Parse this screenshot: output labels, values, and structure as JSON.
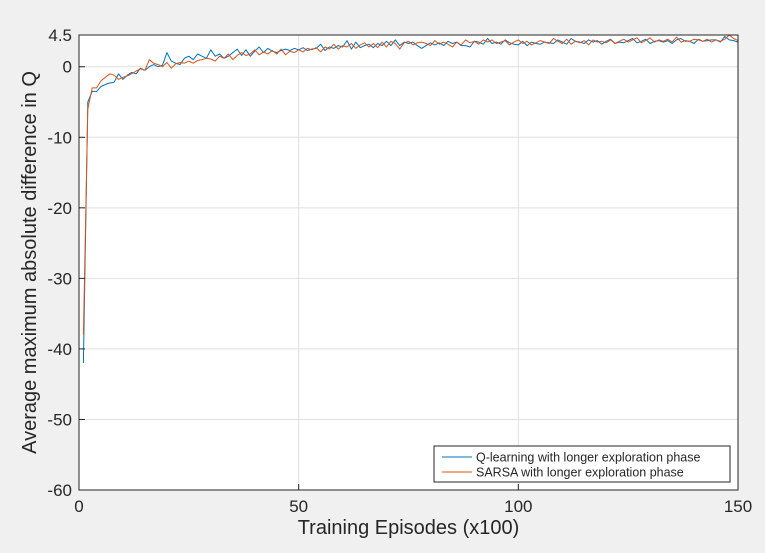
{
  "chart_data": {
    "type": "line",
    "title": "",
    "xlabel": "Training Episodes (x100)",
    "ylabel": "Average maximum absolute difference in Q",
    "xlim": [
      0,
      150
    ],
    "ylim": [
      -60,
      4.5
    ],
    "xticks": [
      0,
      50,
      100,
      150
    ],
    "yticks": [
      -60,
      -50,
      -40,
      -30,
      -20,
      -10,
      0,
      4.5
    ],
    "xtick_labels": [
      "0",
      "50",
      "100",
      "150"
    ],
    "ytick_labels": [
      "-60",
      "-50",
      "-40",
      "-30",
      "-20",
      "-10",
      "0",
      "4.5"
    ],
    "grid": true,
    "legend_position": "bottom-right",
    "series": [
      {
        "name": "Q-learning with longer exploration phase",
        "color": "#0072bd",
        "x": [
          1,
          2,
          3,
          4,
          5,
          6,
          7,
          8,
          9,
          10,
          11,
          12,
          13,
          14,
          15,
          16,
          17,
          18,
          19,
          20,
          21,
          22,
          23,
          24,
          25,
          26,
          27,
          28,
          29,
          30,
          31,
          32,
          33,
          34,
          35,
          36,
          37,
          38,
          39,
          40,
          41,
          42,
          43,
          44,
          45,
          46,
          47,
          48,
          49,
          50,
          51,
          52,
          53,
          54,
          55,
          56,
          57,
          58,
          59,
          60,
          61,
          62,
          63,
          64,
          65,
          66,
          67,
          68,
          69,
          70,
          71,
          72,
          73,
          74,
          75,
          76,
          77,
          78,
          79,
          80,
          81,
          82,
          83,
          84,
          85,
          86,
          87,
          88,
          89,
          90,
          91,
          92,
          93,
          94,
          95,
          96,
          97,
          98,
          99,
          100,
          101,
          102,
          103,
          104,
          105,
          106,
          107,
          108,
          109,
          110,
          111,
          112,
          113,
          114,
          115,
          116,
          117,
          118,
          119,
          120,
          121,
          122,
          123,
          124,
          125,
          126,
          127,
          128,
          129,
          130,
          131,
          132,
          133,
          134,
          135,
          136,
          137,
          138,
          139,
          140,
          141,
          142,
          143,
          144,
          145,
          146,
          147,
          148,
          149,
          150
        ],
        "y": [
          -42,
          -5,
          -3.5,
          -3.5,
          -2.8,
          -2.5,
          -2.3,
          -2.2,
          -1,
          -1.8,
          -1.2,
          -0.8,
          -1,
          -0.2,
          -0.5,
          0,
          0.3,
          0,
          0.2,
          2,
          0.8,
          0.5,
          0.3,
          1.2,
          1.5,
          1,
          1.8,
          1.5,
          1.2,
          2.4,
          1.5,
          1.8,
          1.2,
          1.5,
          2,
          2.5,
          1.6,
          2.4,
          1.5,
          2.2,
          2.8,
          2,
          2.6,
          2.2,
          2,
          2.3,
          2.5,
          2.3,
          2.6,
          2.4,
          2.7,
          2.3,
          2.5,
          2.6,
          3.2,
          2.3,
          2.8,
          2.6,
          3,
          2.8,
          3.7,
          2.5,
          3.5,
          2.7,
          3,
          3.2,
          2.7,
          3.3,
          3,
          3.6,
          3,
          3.8,
          3,
          3.5,
          3.3,
          3.5,
          3,
          2.6,
          3,
          3.4,
          3.1,
          3.4,
          3,
          3.6,
          3.3,
          3.5,
          3,
          3,
          2.8,
          3.6,
          3.5,
          3.2,
          4,
          3.3,
          3.5,
          3.2,
          3.8,
          3.4,
          3.2,
          3.1,
          3.6,
          3,
          3.5,
          3.3,
          3.2,
          3.5,
          3.4,
          3.3,
          3.8,
          3.5,
          3.2,
          4,
          3.6,
          3.5,
          3.3,
          3.8,
          3.5,
          3.7,
          3.2,
          3.6,
          3.9,
          3.3,
          3.5,
          3.4,
          3.7,
          4,
          3.4,
          3.6,
          3.9,
          3.3,
          3.6,
          3.7,
          3.5,
          3.7,
          3.3,
          3.8,
          4,
          3.6,
          3.6,
          3.3,
          3.9,
          3.6,
          3.7,
          3.8,
          3.8,
          3.5,
          4.3,
          3.8,
          3.7,
          3.5
        ]
      },
      {
        "name": "SARSA with longer exploration phase",
        "color": "#d95319",
        "x": [
          1,
          2,
          3,
          4,
          5,
          6,
          7,
          8,
          9,
          10,
          11,
          12,
          13,
          14,
          15,
          16,
          17,
          18,
          19,
          20,
          21,
          22,
          23,
          24,
          25,
          26,
          27,
          28,
          29,
          30,
          31,
          32,
          33,
          34,
          35,
          36,
          37,
          38,
          39,
          40,
          41,
          42,
          43,
          44,
          45,
          46,
          47,
          48,
          49,
          50,
          51,
          52,
          53,
          54,
          55,
          56,
          57,
          58,
          59,
          60,
          61,
          62,
          63,
          64,
          65,
          66,
          67,
          68,
          69,
          70,
          71,
          72,
          73,
          74,
          75,
          76,
          77,
          78,
          79,
          80,
          81,
          82,
          83,
          84,
          85,
          86,
          87,
          88,
          89,
          90,
          91,
          92,
          93,
          94,
          95,
          96,
          97,
          98,
          99,
          100,
          101,
          102,
          103,
          104,
          105,
          106,
          107,
          108,
          109,
          110,
          111,
          112,
          113,
          114,
          115,
          116,
          117,
          118,
          119,
          120,
          121,
          122,
          123,
          124,
          125,
          126,
          127,
          128,
          129,
          130,
          131,
          132,
          133,
          134,
          135,
          136,
          137,
          138,
          139,
          140,
          141,
          142,
          143,
          144,
          145,
          146,
          147,
          148,
          149,
          150
        ],
        "y": [
          -38,
          -6,
          -3,
          -3,
          -2,
          -1.5,
          -1,
          -1.2,
          -1.8,
          -1.5,
          -1.3,
          -1,
          -0.6,
          -0.3,
          -0.5,
          1,
          0.5,
          0.3,
          0,
          0.6,
          -0.2,
          0.4,
          0.6,
          0.5,
          0.8,
          0.5,
          0.9,
          1,
          1.2,
          1.1,
          0.8,
          1.5,
          1.2,
          1.8,
          1,
          1.6,
          2,
          1.6,
          1.8,
          2.4,
          1.7,
          2.1,
          1.8,
          2.3,
          1.8,
          2.5,
          1.7,
          2.2,
          2,
          2.4,
          2.1,
          2.6,
          2.4,
          2.7,
          2.1,
          2.8,
          2.5,
          3.2,
          2.5,
          3,
          2.8,
          3.3,
          2.6,
          3.1,
          3.4,
          2.8,
          3.3,
          2.7,
          3.5,
          2.8,
          3.6,
          3.3,
          2.5,
          3.4,
          3.6,
          3.1,
          3.4,
          3.5,
          3.3,
          3,
          3.7,
          3.2,
          3.5,
          3.2,
          2.8,
          3.5,
          3.1,
          3.8,
          3.4,
          3.6,
          3.2,
          3.8,
          3.5,
          3.8,
          3.3,
          3.5,
          3.7,
          3.1,
          3.5,
          3.8,
          3.3,
          3.6,
          3.1,
          3.4,
          3.7,
          3.5,
          3.3,
          4,
          3.6,
          3.3,
          3.9,
          3.2,
          3.6,
          3.4,
          3.7,
          3.1,
          3.8,
          3.5,
          3.6,
          3.4,
          3.8,
          3.3,
          3.6,
          3.9,
          3.5,
          3.8,
          4.1,
          3.4,
          3.7,
          4.1,
          3.5,
          3.8,
          3.6,
          3.9,
          3.5,
          4.2,
          3.5,
          3.7,
          3.6,
          3.9,
          3.8,
          3.6,
          3.9,
          3.5,
          3.8,
          3.6,
          3.9,
          4.5,
          4,
          3.7
        ]
      }
    ]
  }
}
